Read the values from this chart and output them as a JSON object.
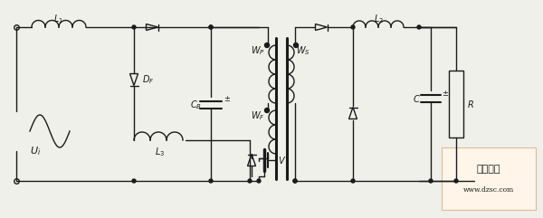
{
  "bg_color": "#f0f0eb",
  "line_color": "#1a1a1a",
  "text_color": "#1a1a1a",
  "figsize": [
    6.0,
    2.41
  ],
  "dpi": 100,
  "watermark_color": "#cc2200",
  "watermark_url": "www.dzsc.com"
}
